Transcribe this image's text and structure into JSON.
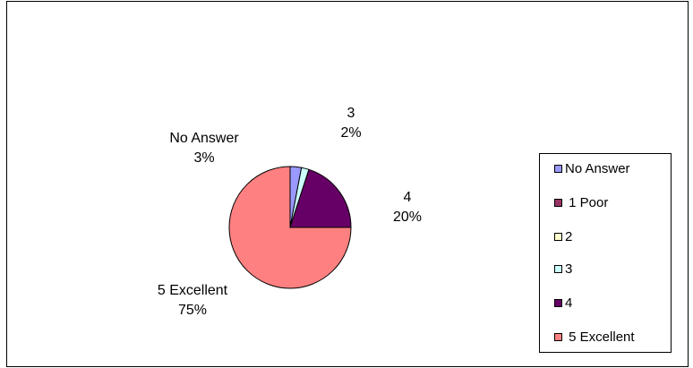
{
  "chart_data": {
    "type": "pie",
    "slices": [
      {
        "name": "No Answer",
        "label": "No Answer",
        "pct_label": "3%",
        "value": 3,
        "color": "#9999FF"
      },
      {
        "name": "1 Poor",
        "label": "",
        "pct_label": "",
        "value": 0,
        "color": "#993366"
      },
      {
        "name": "2",
        "label": "",
        "pct_label": "",
        "value": 0,
        "color": "#FFFFCC"
      },
      {
        "name": "3",
        "label": "3",
        "pct_label": "2%",
        "value": 2,
        "color": "#CCFFFF"
      },
      {
        "name": "4",
        "label": "4",
        "pct_label": "20%",
        "value": 20,
        "color": "#660066"
      },
      {
        "name": "5 Excellent",
        "label": "5 Excellent",
        "pct_label": "75%",
        "value": 75,
        "color": "#FF8080"
      }
    ],
    "legend_position": "right"
  }
}
